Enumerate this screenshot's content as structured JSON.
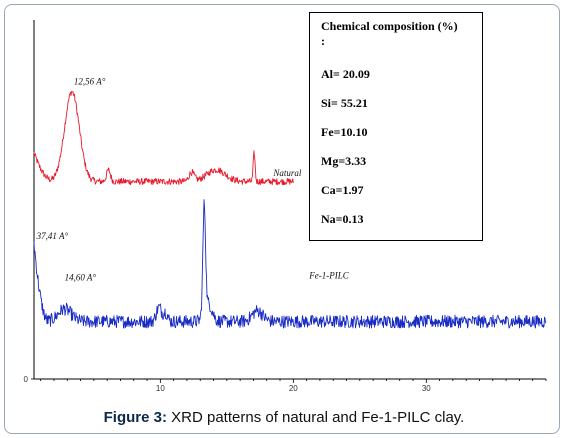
{
  "caption": {
    "label": "Figure 3:",
    "text": " XRD patterns of natural and Fe-1-PILC clay."
  },
  "composition_box": {
    "title": "Chemical composition (%) :",
    "items": [
      "Al= 20.09",
      "Si= 55.21",
      "Fe=10.10",
      "Mg=3.33",
      "Ca=1.97",
      "Na=0.13"
    ]
  },
  "chart_data": {
    "type": "line",
    "title": "",
    "xlabel": "",
    "ylabel": "",
    "xlim": [
      0.5,
      39
    ],
    "ylim": [
      0,
      100
    ],
    "x_ticks": [
      10,
      20,
      30
    ],
    "y_ticks": [
      0
    ],
    "grid": false,
    "series": [
      {
        "name": "Natural",
        "color": "#e8192c",
        "x_range": [
          0.5,
          20
        ],
        "baseline": 55,
        "noise": 0.45,
        "peaks": [
          {
            "x": 3.35,
            "height": 25,
            "width": 0.55
          },
          {
            "x": 6.1,
            "height": 3.2,
            "width": 0.15
          },
          {
            "x": 12.35,
            "height": 2.5,
            "width": 0.2
          },
          {
            "x": 14.2,
            "height": 3.3,
            "width": 0.7
          },
          {
            "x": 17.05,
            "height": 8,
            "width": 0.07
          }
        ],
        "low_angle_rise": {
          "start_value": 63,
          "from": 0.5,
          "to": 2.0
        }
      },
      {
        "name": "Fe-1-PILC",
        "color": "#1a2cc4",
        "x_range": [
          0.5,
          39
        ],
        "baseline": 16,
        "noise": 0.9,
        "peaks": [
          {
            "x": 2.8,
            "height": 3.5,
            "width": 0.5
          },
          {
            "x": 9.9,
            "height": 4,
            "width": 0.2
          },
          {
            "x": 10.4,
            "height": 2.5,
            "width": 0.15
          },
          {
            "x": 13.3,
            "height": 30,
            "width": 0.1
          },
          {
            "x": 13.6,
            "height": 5,
            "width": 0.3
          },
          {
            "x": 17.3,
            "height": 3,
            "width": 0.4
          }
        ],
        "low_angle_rise": {
          "start_value": 38,
          "from": 0.5,
          "to": 1.6
        }
      }
    ],
    "annotations": [
      {
        "text": "12,56 A°",
        "x": 3.5,
        "y": 82
      },
      {
        "text": "37,41 A°",
        "x": 0.7,
        "y": 39
      },
      {
        "text": "14,60 A°",
        "x": 2.8,
        "y": 27.5
      },
      {
        "text": "Natural",
        "x": 18.5,
        "y": 56.5
      },
      {
        "text": "Fe-1-PILC",
        "x": 21.2,
        "y": 28
      }
    ]
  }
}
